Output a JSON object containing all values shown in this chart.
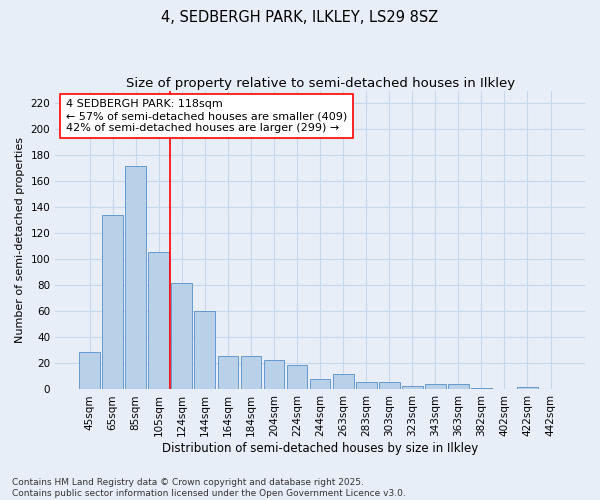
{
  "title1": "4, SEDBERGH PARK, ILKLEY, LS29 8SZ",
  "title2": "Size of property relative to semi-detached houses in Ilkley",
  "xlabel": "Distribution of semi-detached houses by size in Ilkley",
  "ylabel": "Number of semi-detached properties",
  "categories": [
    "45sqm",
    "65sqm",
    "85sqm",
    "105sqm",
    "124sqm",
    "144sqm",
    "164sqm",
    "184sqm",
    "204sqm",
    "224sqm",
    "244sqm",
    "263sqm",
    "283sqm",
    "303sqm",
    "323sqm",
    "343sqm",
    "363sqm",
    "382sqm",
    "402sqm",
    "422sqm",
    "442sqm"
  ],
  "values": [
    29,
    134,
    172,
    106,
    82,
    60,
    26,
    26,
    23,
    19,
    8,
    12,
    6,
    6,
    3,
    4,
    4,
    1,
    0,
    2,
    0
  ],
  "bar_color": "#b8d0e8",
  "bar_edge_color": "#6699cc",
  "bar_linewidth": 0.7,
  "vline_x": 3.5,
  "vline_color": "red",
  "vline_linewidth": 1.2,
  "annotation_line1": "4 SEDBERGH PARK: 118sqm",
  "annotation_line2": "← 57% of semi-detached houses are smaller (409)",
  "annotation_line3": "42% of semi-detached houses are larger (299) →",
  "box_color": "white",
  "box_edge_color": "red",
  "ylim": [
    0,
    230
  ],
  "yticks": [
    0,
    20,
    40,
    60,
    80,
    100,
    120,
    140,
    160,
    180,
    200,
    220
  ],
  "grid_color": "#c8d8ec",
  "background_color": "#e8eef8",
  "footer_text": "Contains HM Land Registry data © Crown copyright and database right 2025.\nContains public sector information licensed under the Open Government Licence v3.0.",
  "title1_fontsize": 10.5,
  "title2_fontsize": 9.5,
  "xlabel_fontsize": 8.5,
  "ylabel_fontsize": 8,
  "tick_fontsize": 7.5,
  "annotation_fontsize": 8,
  "footer_fontsize": 6.5
}
